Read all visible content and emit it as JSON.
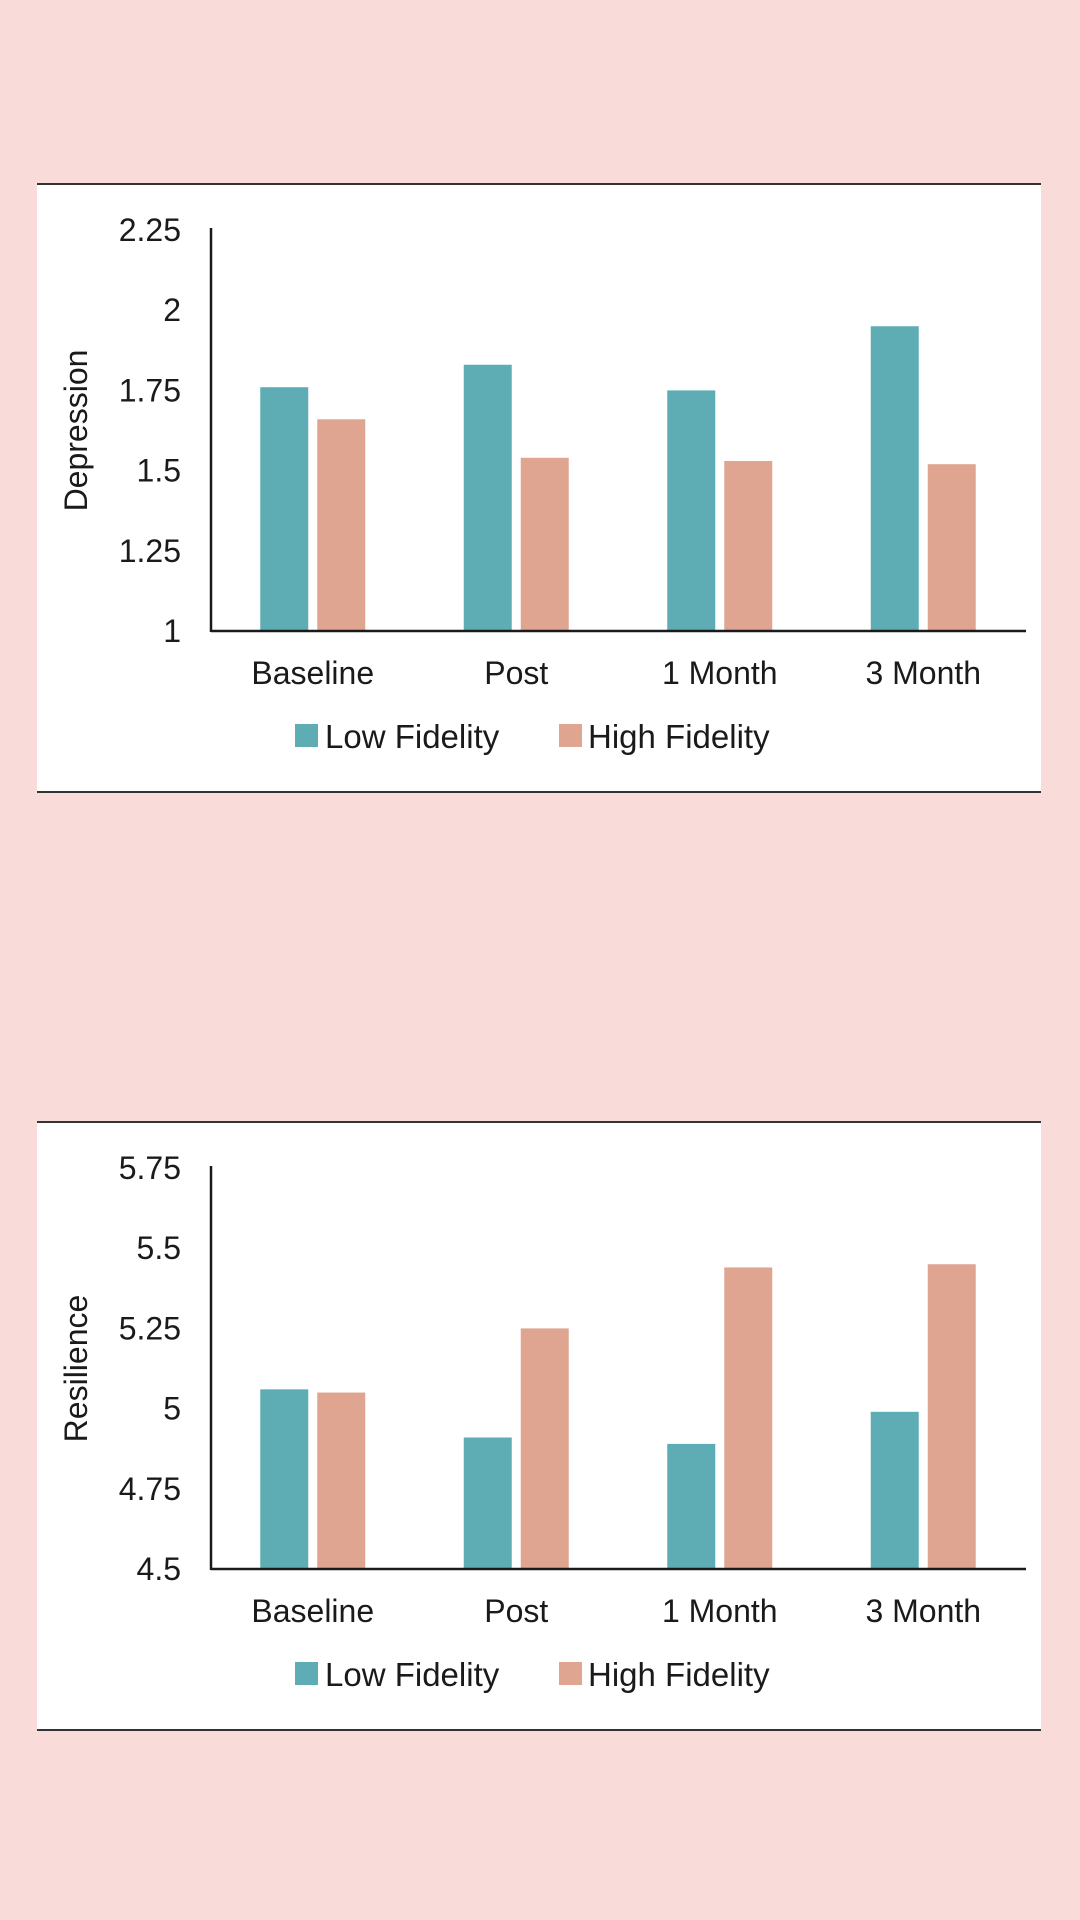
{
  "chart_data": [
    {
      "type": "bar",
      "ylabel": "Depression",
      "ylim": [
        1,
        2.25
      ],
      "yticks": [
        "1",
        "1.25",
        "1.5",
        "1.75",
        "2",
        "2.25"
      ],
      "ytick_values": [
        1,
        1.25,
        1.5,
        1.75,
        2,
        2.25
      ],
      "categories": [
        "Baseline",
        "Post",
        "1 Month",
        "3 Month"
      ],
      "series": [
        {
          "name": "Low Fidelity",
          "color": "#5eadb5",
          "values": [
            1.76,
            1.83,
            1.75,
            1.95
          ]
        },
        {
          "name": "High Fidelity",
          "color": "#dfa591",
          "values": [
            1.66,
            1.54,
            1.53,
            1.52
          ]
        }
      ],
      "legend": "bottom",
      "grid": false
    },
    {
      "type": "bar",
      "ylabel": "Resilience",
      "ylim": [
        4.5,
        5.75
      ],
      "yticks": [
        "4.5",
        "4.75",
        "5",
        "5.25",
        "5.5",
        "5.75"
      ],
      "ytick_values": [
        4.5,
        4.75,
        5,
        5.25,
        5.5,
        5.75
      ],
      "categories": [
        "Baseline",
        "Post",
        "1 Month",
        "3 Month"
      ],
      "series": [
        {
          "name": "Low Fidelity",
          "color": "#5eadb5",
          "values": [
            5.06,
            4.91,
            4.89,
            4.99
          ]
        },
        {
          "name": "High Fidelity",
          "color": "#dfa591",
          "values": [
            5.05,
            5.25,
            5.44,
            5.45
          ]
        }
      ],
      "legend": "bottom",
      "grid": false
    }
  ]
}
